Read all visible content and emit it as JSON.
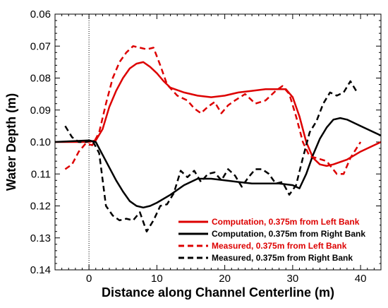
{
  "chart_data": {
    "type": "line",
    "title": "",
    "xlabel": "Distance along Channel Centerline (m)",
    "ylabel": "Water Depth (m)",
    "xlim": [
      -5,
      43
    ],
    "ylim": [
      0.06,
      0.14
    ],
    "y_inverted": true,
    "x_ticks": [
      0,
      10,
      20,
      30,
      40
    ],
    "y_ticks": [
      0.06,
      0.07,
      0.08,
      0.09,
      0.1,
      0.11,
      0.12,
      0.13,
      0.14
    ],
    "y_tick_labels": [
      "0.06",
      "0.07",
      "0.08",
      "0.09",
      "0.10",
      "0.11",
      "0.12",
      "0.13",
      "0.14"
    ],
    "grid": false,
    "legend_position": "bottom-right",
    "series": [
      {
        "name": "Computation, 0.375m from Left Bank",
        "color": "#dd0000",
        "style": "solid",
        "points": [
          [
            -5,
            0.1
          ],
          [
            0,
            0.1
          ],
          [
            1,
            0.0995
          ],
          [
            2,
            0.096
          ],
          [
            3,
            0.089
          ],
          [
            4,
            0.084
          ],
          [
            5,
            0.08
          ],
          [
            6,
            0.077
          ],
          [
            7,
            0.0755
          ],
          [
            8,
            0.075
          ],
          [
            9,
            0.0765
          ],
          [
            10,
            0.0785
          ],
          [
            11,
            0.081
          ],
          [
            12,
            0.083
          ],
          [
            14,
            0.0845
          ],
          [
            16,
            0.0855
          ],
          [
            18,
            0.086
          ],
          [
            20,
            0.0855
          ],
          [
            22,
            0.0845
          ],
          [
            24,
            0.084
          ],
          [
            26,
            0.0835
          ],
          [
            28,
            0.0835
          ],
          [
            29,
            0.0835
          ],
          [
            30,
            0.086
          ],
          [
            31,
            0.092
          ],
          [
            32,
            0.1
          ],
          [
            33,
            0.105
          ],
          [
            34,
            0.107
          ],
          [
            35,
            0.1075
          ],
          [
            36,
            0.107
          ],
          [
            38,
            0.1055
          ],
          [
            40,
            0.103
          ],
          [
            43,
            0.1
          ]
        ]
      },
      {
        "name": "Computation, 0.375m from Right Bank",
        "color": "#000000",
        "style": "solid",
        "points": [
          [
            -5,
            0.1
          ],
          [
            0,
            0.0995
          ],
          [
            1,
            0.1
          ],
          [
            2,
            0.104
          ],
          [
            3,
            0.108
          ],
          [
            4,
            0.112
          ],
          [
            5,
            0.1155
          ],
          [
            6,
            0.1185
          ],
          [
            7,
            0.12
          ],
          [
            8,
            0.1205
          ],
          [
            9,
            0.12
          ],
          [
            10,
            0.119
          ],
          [
            12,
            0.1165
          ],
          [
            14,
            0.1135
          ],
          [
            16,
            0.1115
          ],
          [
            18,
            0.1115
          ],
          [
            20,
            0.112
          ],
          [
            22,
            0.1125
          ],
          [
            24,
            0.113
          ],
          [
            26,
            0.113
          ],
          [
            28,
            0.113
          ],
          [
            30,
            0.1135
          ],
          [
            31,
            0.1145
          ],
          [
            32,
            0.11
          ],
          [
            33,
            0.104
          ],
          [
            34,
            0.099
          ],
          [
            35,
            0.0955
          ],
          [
            36,
            0.093
          ],
          [
            37,
            0.0925
          ],
          [
            38,
            0.093
          ],
          [
            40,
            0.095
          ],
          [
            43,
            0.098
          ]
        ]
      },
      {
        "name": "Measured, 0.375m from Left Bank",
        "color": "#dd0000",
        "style": "dashed",
        "points": [
          [
            -3.5,
            0.1085
          ],
          [
            -2.5,
            0.107
          ],
          [
            -1.5,
            0.103
          ],
          [
            -0.5,
            0.1005
          ],
          [
            0.5,
            0.101
          ],
          [
            1.5,
            0.097
          ],
          [
            2.5,
            0.088
          ],
          [
            3.5,
            0.08
          ],
          [
            4.5,
            0.075
          ],
          [
            5.5,
            0.072
          ],
          [
            6.5,
            0.07
          ],
          [
            7.5,
            0.0705
          ],
          [
            8.5,
            0.071
          ],
          [
            9.5,
            0.0705
          ],
          [
            10.5,
            0.076
          ],
          [
            11.5,
            0.082
          ],
          [
            13,
            0.0855
          ],
          [
            14.5,
            0.087
          ],
          [
            15.5,
            0.0895
          ],
          [
            16.5,
            0.091
          ],
          [
            17.5,
            0.089
          ],
          [
            18.5,
            0.0875
          ],
          [
            19.5,
            0.091
          ],
          [
            20.5,
            0.0885
          ],
          [
            21.5,
            0.087
          ],
          [
            23,
            0.085
          ],
          [
            24.5,
            0.088
          ],
          [
            26,
            0.087
          ],
          [
            27.5,
            0.084
          ],
          [
            28.5,
            0.0825
          ],
          [
            29.5,
            0.085
          ],
          [
            30.5,
            0.092
          ],
          [
            31.5,
            0.1
          ],
          [
            32.5,
            0.1045
          ],
          [
            33.5,
            0.105
          ],
          [
            35,
            0.106
          ],
          [
            36.5,
            0.11
          ],
          [
            37.5,
            0.11
          ],
          [
            38.5,
            0.105
          ],
          [
            40,
            0.1
          ]
        ]
      },
      {
        "name": "Measured, 0.375m from Right Bank",
        "color": "#000000",
        "style": "dashed",
        "points": [
          [
            -3.5,
            0.095
          ],
          [
            -2.5,
            0.0985
          ],
          [
            -1.5,
            0.1
          ],
          [
            -0.5,
            0.1
          ],
          [
            0.5,
            0.0995
          ],
          [
            1.5,
            0.1035
          ],
          [
            2.5,
            0.12
          ],
          [
            3.5,
            0.123
          ],
          [
            4.5,
            0.1245
          ],
          [
            5.5,
            0.124
          ],
          [
            6.5,
            0.1245
          ],
          [
            7.5,
            0.122
          ],
          [
            8.5,
            0.128
          ],
          [
            9.5,
            0.1245
          ],
          [
            10.5,
            0.12
          ],
          [
            11.5,
            0.1195
          ],
          [
            12.5,
            0.116
          ],
          [
            13.5,
            0.109
          ],
          [
            14.5,
            0.111
          ],
          [
            15.5,
            0.109
          ],
          [
            16.5,
            0.1125
          ],
          [
            17.5,
            0.11
          ],
          [
            18.5,
            0.1095
          ],
          [
            19.5,
            0.112
          ],
          [
            20.5,
            0.1085
          ],
          [
            21.5,
            0.1105
          ],
          [
            22.5,
            0.114
          ],
          [
            23.5,
            0.111
          ],
          [
            24.5,
            0.1085
          ],
          [
            25.5,
            0.1085
          ],
          [
            26.5,
            0.11
          ],
          [
            27.5,
            0.113
          ],
          [
            28.5,
            0.1125
          ],
          [
            29.5,
            0.1165
          ],
          [
            30.5,
            0.1135
          ],
          [
            31.5,
            0.105
          ],
          [
            32.5,
            0.097
          ],
          [
            33.5,
            0.0935
          ],
          [
            34.5,
            0.088
          ],
          [
            35.5,
            0.0845
          ],
          [
            36.5,
            0.0855
          ],
          [
            37.5,
            0.0845
          ],
          [
            38.5,
            0.081
          ],
          [
            39.5,
            0.0845
          ]
        ]
      }
    ]
  }
}
